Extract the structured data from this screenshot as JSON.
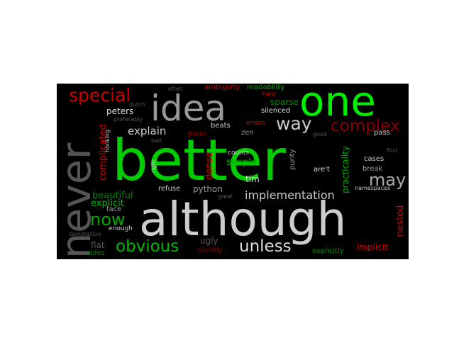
{
  "palette": {
    "green": "#00cc00",
    "bright_green": "#00ee00",
    "dark_green": "#008800",
    "red": "#cc0000",
    "dark_red": "#880000",
    "white": "#e8e8e8",
    "gray": "#999999",
    "dark_gray": "#555555",
    "background": "#000000"
  },
  "words": {
    "better": "better",
    "although": "although",
    "never": "never",
    "one": "one",
    "idea": "idea",
    "complex": "complex",
    "special": "special",
    "may": "may",
    "way": "way",
    "now": "now",
    "obvious": "obvious",
    "unless": "unless",
    "implementation": "implementation",
    "explain": "explain",
    "peters": "peters",
    "complicated": "complicated",
    "beautiful": "beautiful",
    "explicit": "explicit",
    "dense": "dense",
    "simple": "simple",
    "tim": "tim",
    "python": "python",
    "refuse": "refuse",
    "zen": "zen",
    "counts": "counts",
    "silenced": "silenced",
    "sparse": "sparse",
    "readability": "readability",
    "ambiguity": "ambiguity",
    "errors": "errors",
    "beats": "beats",
    "guess": "guess",
    "hard": "hard",
    "often": "often",
    "dutch": "dutch",
    "preferably": "preferably",
    "cases": "cases",
    "pass": "pass",
    "break": "break",
    "practicality": "practicality",
    "purity": "purity",
    "arent": "are't",
    "namespaces": "namespaces",
    "nested": "nested",
    "implicit": "implicit",
    "explicitly": "explicitly",
    "silently": "silently",
    "ugly": "ugly",
    "flat": "flat",
    "face": "face",
    "enough": "enough",
    "temptation": "temptation",
    "rules": "rules",
    "honking": "honking",
    "right": "right",
    "bad": "bad",
    "good": "good",
    "first": "first",
    "great": "great"
  }
}
